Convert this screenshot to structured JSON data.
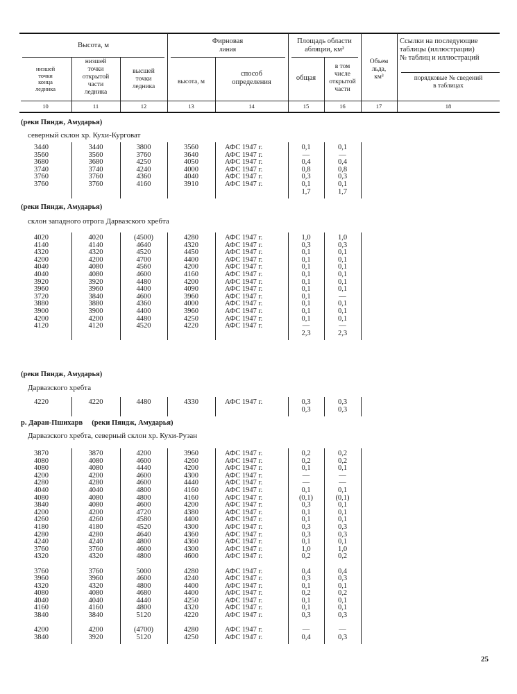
{
  "header": {
    "height_group": "Высота, м",
    "height_lowest_end": [
      "низшей",
      "точки",
      "конца",
      "ледника"
    ],
    "height_lowest_open": [
      "низшей",
      "точки",
      "открытой",
      "части",
      "ледника"
    ],
    "height_highest": [
      "высшей",
      "точки",
      "ледника"
    ],
    "firn_group": [
      "Фирновая",
      "линия"
    ],
    "firn_height": "высота, м",
    "firn_method": [
      "способ",
      "определения"
    ],
    "ablation_group": [
      "Площадь области",
      "абляции, км²"
    ],
    "ablation_total": "общая",
    "ablation_open": [
      "в том",
      "числе",
      "открытой",
      "части"
    ],
    "ice_volume": [
      "Объем",
      "льда,",
      "км³"
    ],
    "refs_group": [
      "Ссылки на последующие",
      "таблицы  (иллюстрации)",
      "№ таблиц и иллюстраций"
    ],
    "refs_sub": [
      "порядковые № сведений",
      "в таблицах"
    ],
    "column_numbers": [
      "10",
      "11",
      "12",
      "13",
      "14",
      "15",
      "16",
      "17",
      "18"
    ]
  },
  "sections": [
    {
      "heading": "(реки Пяндж, Амударья)",
      "subtitle": "северный склон хр. Кухи-Курговат",
      "groups": [
        [
          [
            "3440",
            "3440",
            "3800",
            "3560",
            "АФС 1947 г.",
            "0,1",
            "0,1"
          ],
          [
            "3560",
            "3560",
            "3760",
            "3640",
            "АФС 1947 г.",
            "—",
            "—"
          ],
          [
            "3680",
            "3680",
            "4250",
            "4050",
            "АФС 1947 г.",
            "0,4",
            "0,4"
          ],
          [
            "3740",
            "3740",
            "4240",
            "4000",
            "АФС 1947 г.",
            "0,8",
            "0,8"
          ],
          [
            "3760",
            "3760",
            "4360",
            "4040",
            "АФС 1947 г.",
            "0,3",
            "0,3"
          ],
          [
            "3760",
            "3760",
            "4160",
            "3910",
            "АФС 1947 г.",
            "0,1",
            "0,1"
          ],
          [
            "",
            "",
            "",
            "",
            "",
            "1,7",
            "1,7"
          ]
        ]
      ]
    },
    {
      "heading": "(реки Пяндж, Амударья)",
      "subtitle": "склон западного отрога Дарвазского хребта",
      "groups": [
        [
          [
            "4020",
            "4020",
            "(4500)",
            "4280",
            "АФС 1947 г.",
            "1,0",
            "1,0"
          ],
          [
            "4140",
            "4140",
            "4640",
            "4320",
            "АФС 1947 г.",
            "0,3",
            "0,3"
          ],
          [
            "4320",
            "4320",
            "4520",
            "4450",
            "АФС 1947 г.",
            "0,1",
            "0,1"
          ],
          [
            "4200",
            "4200",
            "4700",
            "4400",
            "АФС 1947 г.",
            "0,1",
            "0,1"
          ],
          [
            "4040",
            "4080",
            "4560",
            "4200",
            "АФС 1947 г.",
            "0,1",
            "0,1"
          ],
          [
            "4040",
            "4080",
            "4600",
            "4160",
            "АФС 1947 г.",
            "0,1",
            "0,1"
          ],
          [
            "3920",
            "3920",
            "4480",
            "4200",
            "АФС 1947 г.",
            "0,1",
            "0,1"
          ],
          [
            "3960",
            "3960",
            "4400",
            "4090",
            "АФС 1947 г.",
            "0,1",
            "0,1"
          ],
          [
            "3720",
            "3840",
            "4600",
            "3960",
            "АФС 1947 г.",
            "0,1",
            "—"
          ],
          [
            "3880",
            "3880",
            "4360",
            "4000",
            "АФС 1947 г.",
            "0,1",
            "0,1"
          ],
          [
            "3900",
            "3900",
            "4400",
            "3960",
            "АФС 1947 г.",
            "0,1",
            "0,1"
          ],
          [
            "4200",
            "4200",
            "4480",
            "4250",
            "АФС 1947 г.",
            "0,1",
            "0,1"
          ],
          [
            "4120",
            "4120",
            "4520",
            "4220",
            "АФС 1947 г.",
            "—",
            "—"
          ],
          [
            "",
            "",
            "",
            "",
            "",
            "2,3",
            "2,3"
          ]
        ]
      ]
    },
    {
      "heading": "(реки Пяндж, Амударья)",
      "subtitle": "Дарвазского хребта",
      "groups": [
        [
          [
            "4220",
            "4220",
            "4480",
            "4330",
            "АФС 1947 г.",
            "0,3",
            "0,3"
          ],
          [
            "",
            "",
            "",
            "",
            "",
            "0,3",
            "0,3"
          ]
        ]
      ]
    },
    {
      "heading": "р. Даран-Пшихарв     (реки Пяндж, Амударья)",
      "subtitle": "Дарвазского хребта, северный склон хр. Кухи-Рузан",
      "groups": [
        [
          [
            "3870",
            "3870",
            "4200",
            "3960",
            "АФС 1947 г.",
            "0,2",
            "0,2"
          ],
          [
            "4080",
            "4080",
            "4600",
            "4260",
            "АФС 1947 г.",
            "0,2",
            "0,2"
          ],
          [
            "4080",
            "4080",
            "4440",
            "4200",
            "АФС 1947 г.",
            "0,1",
            "0,1"
          ],
          [
            "4200",
            "4200",
            "4600",
            "4300",
            "АФС 1947 г.",
            "—",
            "—"
          ],
          [
            "4280",
            "4280",
            "4600",
            "4440",
            "АФС 1947 г.",
            "—",
            "—"
          ],
          [
            "4040",
            "4040",
            "4800",
            "4160",
            "АФС 1947 г.",
            "0,1",
            "0,1"
          ],
          [
            "4080",
            "4080",
            "4800",
            "4160",
            "АФС 1947 г.",
            "(0,1)",
            "(0,1)"
          ],
          [
            "3840",
            "4080",
            "4600",
            "4200",
            "АФС 1947 г.",
            "0,3",
            "0,1"
          ],
          [
            "4200",
            "4200",
            "4720",
            "4380",
            "АФС 1947 г.",
            "0,1",
            "0,1"
          ],
          [
            "4260",
            "4260",
            "4580",
            "4400",
            "АФС 1947 г.",
            "0,1",
            "0,1"
          ],
          [
            "4180",
            "4180",
            "4520",
            "4300",
            "АФС 1947 г.",
            "0,3",
            "0,3"
          ],
          [
            "4280",
            "4280",
            "4640",
            "4360",
            "АФС 1947 г.",
            "0,3",
            "0,3"
          ],
          [
            "4240",
            "4240",
            "4800",
            "4360",
            "АФС 1947 г.",
            "0,1",
            "0,1"
          ],
          [
            "3760",
            "3760",
            "4600",
            "4300",
            "АФС 1947 г.",
            "1,0",
            "1,0"
          ],
          [
            "4320",
            "4320",
            "4800",
            "4600",
            "АФС 1947 г.",
            "0,2",
            "0,2"
          ]
        ],
        [
          [
            "3760",
            "3760",
            "5000",
            "4280",
            "АФС 1947 г.",
            "0,4",
            "0,4"
          ],
          [
            "3960",
            "3960",
            "4600",
            "4240",
            "АФС 1947 г.",
            "0,3",
            "0,3"
          ],
          [
            "4320",
            "4320",
            "4800",
            "4400",
            "АФС 1947 г.",
            "0,1",
            "0,1"
          ],
          [
            "4080",
            "4080",
            "4680",
            "4400",
            "АФС 1947 г.",
            "0,2",
            "0,2"
          ],
          [
            "4040",
            "4040",
            "4440",
            "4250",
            "АФС 1947 г.",
            "0,1",
            "0,1"
          ],
          [
            "4160",
            "4160",
            "4800",
            "4320",
            "АФС 1947 г.",
            "0,1",
            "0,1"
          ],
          [
            "3840",
            "3840",
            "5120",
            "4220",
            "АФС 1947 г.",
            "0,3",
            "0,3"
          ]
        ],
        [
          [
            "4200",
            "4200",
            "(4700)",
            "4280",
            "АФС 1947 г.",
            "—",
            "—"
          ],
          [
            "3840",
            "3920",
            "5120",
            "4250",
            "АФС 1947 г.",
            "0,4",
            "0,3"
          ]
        ]
      ]
    }
  ],
  "page_number": "25"
}
